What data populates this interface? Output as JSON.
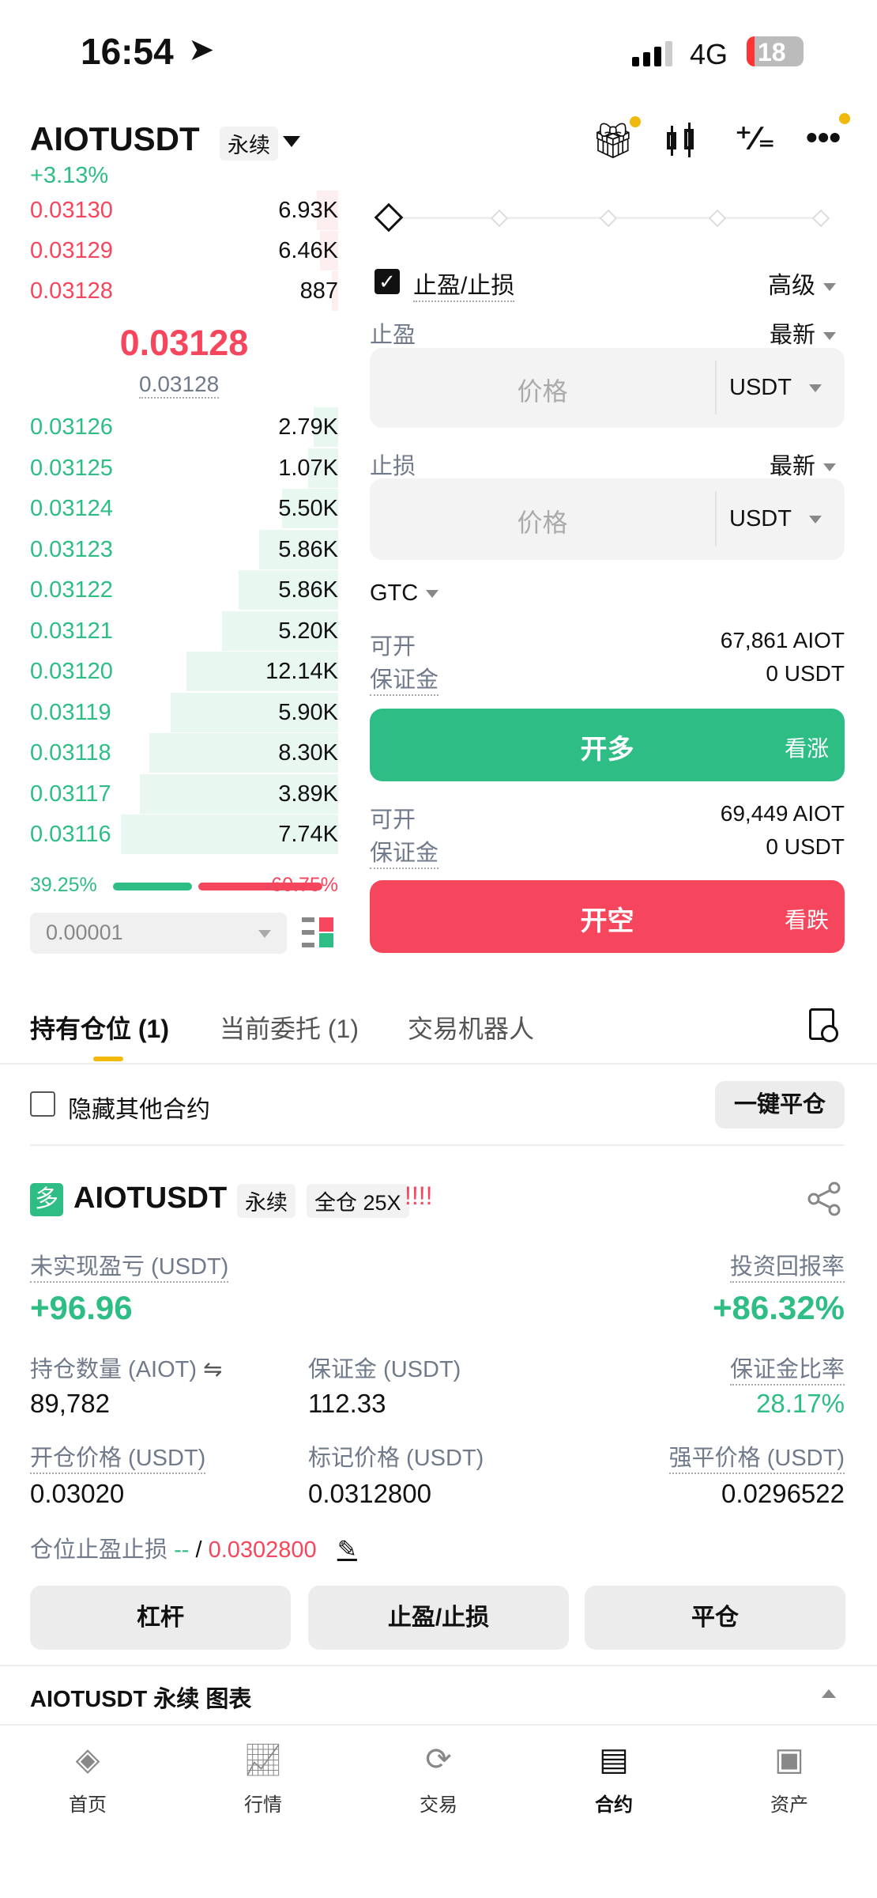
{
  "status": {
    "time": "16:54",
    "network": "4G",
    "battery": "18"
  },
  "header": {
    "symbol": "AIOTUSDT",
    "type": "永续",
    "change": "+3.13%"
  },
  "orderbook": {
    "asks": [
      {
        "price": "0.03130",
        "qty": "6.93K"
      },
      {
        "price": "0.03129",
        "qty": "6.46K"
      },
      {
        "price": "0.03128",
        "qty": "887"
      }
    ],
    "last_price": "0.03128",
    "mark_price": "0.03128",
    "bids": [
      {
        "price": "0.03126",
        "qty": "2.79K",
        "v": 2.79
      },
      {
        "price": "0.03125",
        "qty": "1.07K",
        "v": 1.07
      },
      {
        "price": "0.03124",
        "qty": "5.50K",
        "v": 5.5
      },
      {
        "price": "0.03123",
        "qty": "5.86K",
        "v": 5.86
      },
      {
        "price": "0.03122",
        "qty": "5.86K",
        "v": 5.86
      },
      {
        "price": "0.03121",
        "qty": "5.20K",
        "v": 5.2
      },
      {
        "price": "0.03120",
        "qty": "12.14K",
        "v": 12.14
      },
      {
        "price": "0.03119",
        "qty": "5.90K",
        "v": 5.9
      },
      {
        "price": "0.03118",
        "qty": "8.30K",
        "v": 8.3
      },
      {
        "price": "0.03117",
        "qty": "3.89K",
        "v": 3.89
      },
      {
        "price": "0.03116",
        "qty": "7.74K",
        "v": 7.74
      }
    ],
    "buy_ratio": "39.25%",
    "sell_ratio": "60.75%",
    "buy_fraction": 0.3925,
    "tick_size": "0.00001"
  },
  "form": {
    "tpsl_label": "止盈/止损",
    "tpsl_checked": true,
    "advanced": "高级",
    "tp_label": "止盈",
    "tp_trigger": "最新",
    "tp_placeholder": "价格",
    "tp_unit": "USDT",
    "sl_label": "止损",
    "sl_trigger": "最新",
    "sl_placeholder": "价格",
    "sl_unit": "USDT",
    "tif": "GTC",
    "long": {
      "avail_label": "可开",
      "avail": "67,861 AIOT",
      "margin_label": "保证金",
      "margin": "0 USDT",
      "button": "开多",
      "hint": "看涨"
    },
    "short": {
      "avail_label": "可开",
      "avail": "69,449 AIOT",
      "margin_label": "保证金",
      "margin": "0 USDT",
      "button": "开空",
      "hint": "看跌"
    }
  },
  "tabs": [
    {
      "label": "持有仓位 (1)",
      "active": true
    },
    {
      "label": "当前委托 (1)"
    },
    {
      "label": "交易机器人"
    }
  ],
  "positions": {
    "hide_other": "隐藏其他合约",
    "close_all": "一键平仓"
  },
  "position": {
    "side": "多",
    "symbol": "AIOTUSDT",
    "type": "永续",
    "mode": "全仓 25X",
    "warn": "!!!!",
    "pnl_label": "未实现盈亏 (USDT)",
    "pnl": "+96.96",
    "roe_label": "投资回报率",
    "roe": "+86.32%",
    "size_label": "持仓数量 (AIOT)",
    "size": "89,782",
    "margin_label": "保证金 (USDT)",
    "margin": "112.33",
    "mr_label": "保证金比率",
    "mr": "28.17%",
    "entry_label": "开仓价格 (USDT)",
    "entry": "0.03020",
    "mark_label": "标记价格 (USDT)",
    "mark": "0.0312800",
    "liq_label": "强平价格 (USDT)",
    "liq": "0.0296522",
    "tpsl_label": "仓位止盈止损",
    "tp": "--",
    "sep": "/",
    "sl": "0.0302800",
    "buttons": [
      "杠杆",
      "止盈/止损",
      "平仓"
    ]
  },
  "chart_bar": "AIOTUSDT 永续 图表",
  "nav": [
    {
      "label": "首页",
      "icon": "binance-logo-icon"
    },
    {
      "label": "行情",
      "icon": "market-chart-icon"
    },
    {
      "label": "交易",
      "icon": "trade-exchange-icon"
    },
    {
      "label": "合约",
      "icon": "futures-icon",
      "active": true
    },
    {
      "label": "资产",
      "icon": "wallet-icon"
    }
  ],
  "colors": {
    "up": "#2ebd85",
    "down": "#f6465d",
    "accent": "#f0b90b"
  }
}
